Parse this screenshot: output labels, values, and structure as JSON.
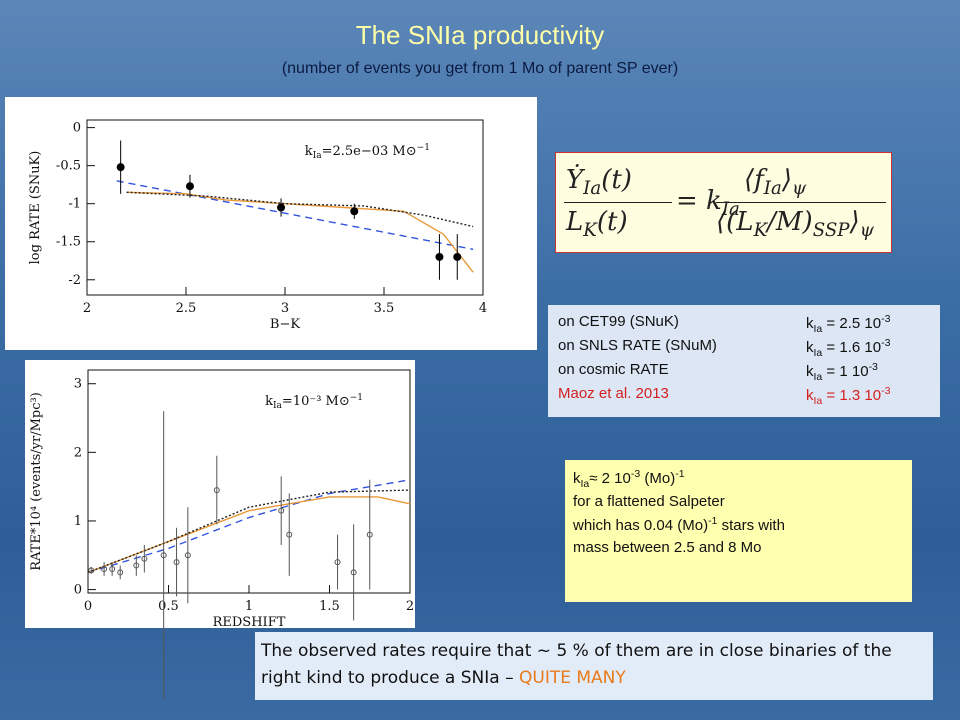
{
  "title": "The SNIa productivity",
  "subtitle": "(number of events you get from 1 Mo of parent SP ever)",
  "chart_data": [
    {
      "type": "scatter",
      "xlabel": "B−K",
      "ylabel": "log RATE (SNuK)",
      "annotation": {
        "text": "k",
        "sub": "Ia",
        "rest": "=2.5e−03 M",
        "sun": "⊙",
        "sup": "−1"
      },
      "xlim": [
        2,
        4
      ],
      "ylim": [
        -2.2,
        0.1
      ],
      "xticks": [
        2,
        2.5,
        3,
        3.5,
        4
      ],
      "yticks": [
        0,
        -0.5,
        -1,
        -1.5,
        -2
      ],
      "points": {
        "x": [
          2.17,
          2.52,
          2.98,
          3.35,
          3.78,
          3.87
        ],
        "y": [
          -0.52,
          -0.77,
          -1.05,
          -1.1,
          -1.7,
          -1.7
        ],
        "yerr": [
          0.35,
          0.15,
          0.12,
          0.1,
          0.3,
          0.3
        ],
        "color": "#000000"
      },
      "series": [
        {
          "x": [
            2.15,
            3.95
          ],
          "values": [
            -0.7,
            -1.6
          ],
          "color": "#3355dd",
          "dash": "7,5"
        },
        {
          "x": [
            2.2,
            2.5,
            2.7,
            3.0,
            3.3,
            3.6,
            3.8,
            3.95
          ],
          "values": [
            -0.85,
            -0.87,
            -0.95,
            -1.0,
            -1.05,
            -1.1,
            -1.4,
            -1.9
          ],
          "color": "#e8993a",
          "dash": "none"
        },
        {
          "x": [
            2.2,
            2.6,
            3.0,
            3.4,
            3.7,
            3.95
          ],
          "values": [
            -0.85,
            -0.9,
            -1.0,
            -1.03,
            -1.15,
            -1.3
          ],
          "color": "#222222",
          "dash": "2,2"
        }
      ]
    },
    {
      "type": "scatter",
      "xlabel": "REDSHIFT",
      "ylabel": "RATE*10⁴ (events/yr/Mpc³)",
      "annotation": {
        "text": "k",
        "sub": "Ia",
        "rest": "=10⁻³ M",
        "sun": "⊙",
        "sup": "−1"
      },
      "xlim": [
        0,
        2
      ],
      "ylim": [
        -0.05,
        3.2
      ],
      "xticks": [
        0,
        0.5,
        1,
        1.5,
        2
      ],
      "yticks": [
        0,
        1,
        2,
        3
      ],
      "points": {
        "x": [
          0.02,
          0.1,
          0.15,
          0.2,
          0.3,
          0.35,
          0.47,
          0.55,
          0.62,
          0.8,
          1.2,
          1.25,
          1.55,
          1.65,
          1.75
        ],
        "y": [
          0.28,
          0.3,
          0.3,
          0.25,
          0.35,
          0.45,
          0.5,
          0.4,
          0.5,
          1.45,
          1.15,
          0.8,
          0.4,
          0.25,
          0.8
        ],
        "yerr": [
          0.05,
          0.1,
          0.1,
          0.1,
          0.15,
          0.2,
          2.1,
          0.5,
          0.7,
          0.5,
          0.5,
          0.6,
          0.4,
          0.7,
          0.8
        ],
        "color": "#555555"
      },
      "series": [
        {
          "x": [
            0,
            0.5,
            1.0,
            1.5,
            2.0
          ],
          "values": [
            0.25,
            0.6,
            1.05,
            1.4,
            1.6
          ],
          "color": "#3355dd",
          "dash": "7,5"
        },
        {
          "x": [
            0,
            0.5,
            1.0,
            1.5,
            1.8,
            2.0
          ],
          "values": [
            0.25,
            0.7,
            1.15,
            1.35,
            1.35,
            1.25
          ],
          "color": "#e8993a",
          "dash": "none"
        },
        {
          "x": [
            0,
            0.5,
            1.0,
            1.5,
            2.0
          ],
          "values": [
            0.25,
            0.7,
            1.2,
            1.42,
            1.45
          ],
          "color": "#222222",
          "dash": "2,2"
        }
      ]
    }
  ],
  "formula": {
    "num": "Ẏ",
    "numsub": "Ia",
    "numarg": "(t)",
    "den": "L",
    "densub": "K",
    "denarg": "(t)",
    "eq": "= k",
    "eqsub": "Ia",
    "fnum": "⟨f",
    "fnumsub": "Ia",
    "fnumend": "⟩",
    "fnumpsi": "ψ",
    "fden": "⟨(L",
    "fdensub": "K",
    "fdenmid": "/M)",
    "fdensub2": "SSP",
    "fdenend": "⟩",
    "fdenpsi": "ψ"
  },
  "calibrations": [
    {
      "label": "on CET99 (SNuK)",
      "k": "k",
      "sub": "Ia",
      "value": " = 2.5 10",
      "sup": "-3"
    },
    {
      "label": "on SNLS RATE (SNuM)",
      "k": "k",
      "sub": "Ia",
      "value": " = 1.6 10",
      "sup": "-3"
    },
    {
      "label": "on cosmic RATE",
      "k": "k",
      "sub": "Ia",
      "value": " = 1 10",
      "sup": "-3"
    },
    {
      "label": "Maoz et al. 2013",
      "k": "k",
      "sub": "Ia",
      "value": " = 1.3 10",
      "sup": "-3"
    }
  ],
  "note": {
    "k": "k",
    "sub": "Ia",
    "eq": "≈ 2 10",
    "sup": "-3",
    "unit": " (Mo)",
    "unitsup": "-1",
    "line2": "for a flattened Salpeter",
    "line3a": "which has 0.04 (Mo)",
    "line3sup": "-1",
    "line3b": " stars with",
    "line4": "mass between 2.5 and 8 Mo"
  },
  "conclusion": {
    "text": "The observed rates require that ~ 5 % of them are in close binaries of the right kind to produce a SNIa – ",
    "emphasis": "QUITE MANY"
  }
}
